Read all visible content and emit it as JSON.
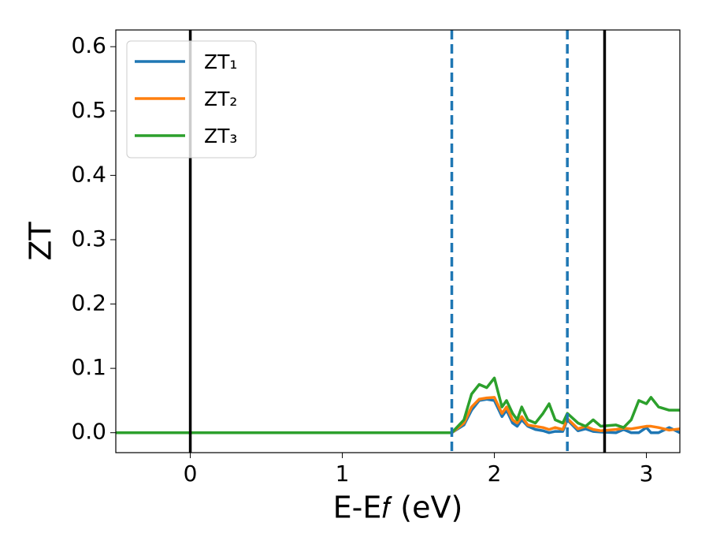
{
  "chart_data": {
    "type": "line",
    "xlabel": "E-E𝑓 (eV)",
    "ylabel": "ZT",
    "x": [
      -0.49,
      1.72,
      1.8,
      1.85,
      1.9,
      1.95,
      2.0,
      2.05,
      2.08,
      2.12,
      2.15,
      2.18,
      2.22,
      2.27,
      2.32,
      2.36,
      2.4,
      2.45,
      2.48,
      2.55,
      2.6,
      2.65,
      2.7,
      2.8,
      2.85,
      2.9,
      2.95,
      3.0,
      3.03,
      3.08,
      3.15,
      3.22
    ],
    "series": [
      {
        "name": "ZT₁",
        "color": "#1f77b4",
        "values": [
          0,
          0,
          0.012,
          0.035,
          0.05,
          0.052,
          0.05,
          0.025,
          0.035,
          0.015,
          0.01,
          0.02,
          0.01,
          0.005,
          0.003,
          0.0,
          0.002,
          0.002,
          0.02,
          0.003,
          0.006,
          0.002,
          0.001,
          0.0,
          0.005,
          0.0,
          0.0,
          0.008,
          0.0,
          0.0,
          0.008,
          0.0
        ]
      },
      {
        "name": "ZT₂",
        "color": "#ff7f0e",
        "values": [
          0,
          0,
          0.015,
          0.04,
          0.052,
          0.054,
          0.055,
          0.03,
          0.04,
          0.02,
          0.015,
          0.025,
          0.012,
          0.01,
          0.008,
          0.005,
          0.008,
          0.005,
          0.022,
          0.006,
          0.01,
          0.005,
          0.003,
          0.005,
          0.007,
          0.006,
          0.008,
          0.01,
          0.01,
          0.008,
          0.004,
          0.006
        ]
      },
      {
        "name": "ZT₃",
        "color": "#2ca02c",
        "values": [
          0,
          0,
          0.02,
          0.06,
          0.075,
          0.07,
          0.085,
          0.04,
          0.05,
          0.03,
          0.02,
          0.04,
          0.02,
          0.015,
          0.03,
          0.045,
          0.02,
          0.015,
          0.03,
          0.015,
          0.01,
          0.02,
          0.01,
          0.012,
          0.008,
          0.02,
          0.05,
          0.045,
          0.055,
          0.04,
          0.035,
          0.035
        ]
      }
    ],
    "vlines": [
      {
        "x": 0,
        "color": "#000000",
        "style": "solid"
      },
      {
        "x": 1.72,
        "color": "#1f77b4",
        "style": "dashed"
      },
      {
        "x": 2.48,
        "color": "#1f77b4",
        "style": "dashed"
      },
      {
        "x": 2.725,
        "color": "#000000",
        "style": "solid"
      }
    ],
    "xlim": [
      -0.49,
      3.22
    ],
    "ylim": [
      -0.031,
      0.626
    ],
    "xticks": [
      0,
      1,
      2,
      3
    ],
    "yticks": [
      {
        "value": 0,
        "label": "0.0"
      },
      0.1,
      0.2,
      0.3,
      0.4,
      0.5,
      0.6
    ],
    "legend": "upper left",
    "grid": false
  }
}
